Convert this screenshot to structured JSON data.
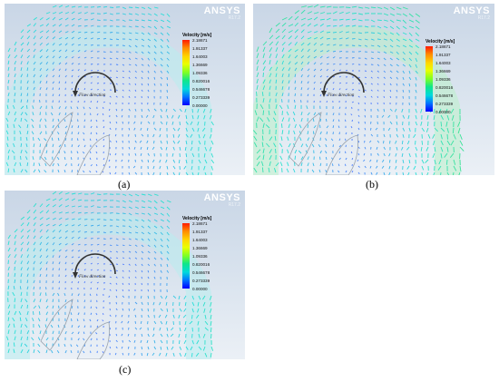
{
  "brand": {
    "name": "ANSYS",
    "version": "R17.2"
  },
  "legend": {
    "title": "Velocity [m/s]",
    "ticks": [
      "2.18671",
      "1.91337",
      "1.64003",
      "1.36669",
      "1.09336",
      "0.820016",
      "0.546678",
      "0.273339",
      "0.00000"
    ]
  },
  "annotation": {
    "flow_label": "Flow direction"
  },
  "panels": [
    {
      "id": "a",
      "caption": "(a)",
      "variant": "moderate"
    },
    {
      "id": "b",
      "caption": "(b)",
      "variant": "fast"
    },
    {
      "id": "c",
      "caption": "(c)",
      "variant": "moderate"
    }
  ],
  "colors": {
    "background_top": "#c9d6e6",
    "vector_slow": "#4f7cff",
    "vector_mid": "#29e0d8",
    "vector_fast": "#3fe37a",
    "arc": "#333333"
  }
}
